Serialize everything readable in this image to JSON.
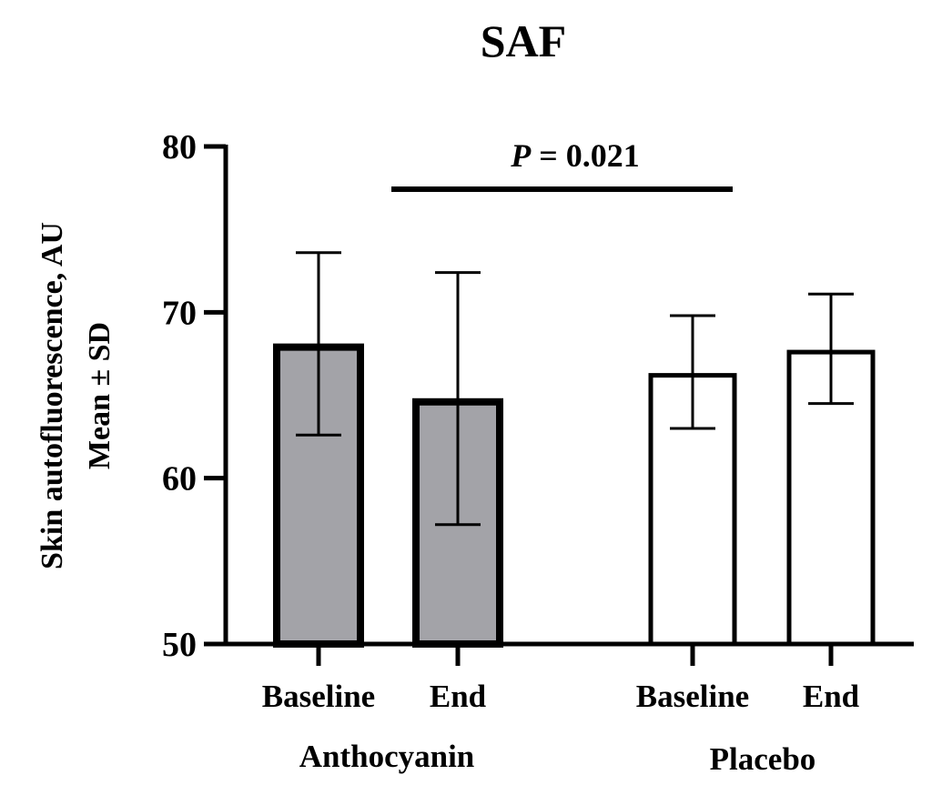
{
  "chart_data": {
    "type": "bar",
    "title": "SAF",
    "ylabel_line1": "Skin autofluorescence, AU",
    "ylabel_line2": "Mean ± SD",
    "xlabel": "",
    "ylim": [
      50,
      80
    ],
    "yticks": [
      "50",
      "60",
      "70",
      "80"
    ],
    "ytick_values": [
      50,
      60,
      70,
      80
    ],
    "categories": [
      "Baseline",
      "End",
      "Baseline",
      "End"
    ],
    "groups": [
      {
        "name": "Anthocyanin",
        "fill": "#a3a3a8"
      },
      {
        "name": "Placebo",
        "fill": "#ffffff"
      }
    ],
    "bars": [
      {
        "group": 0,
        "category": "Baseline",
        "mean": 67.9,
        "sd_upper": 73.6,
        "sd_lower": 62.6
      },
      {
        "group": 0,
        "category": "End",
        "mean": 64.6,
        "sd_upper": 72.4,
        "sd_lower": 57.2
      },
      {
        "group": 1,
        "category": "Baseline",
        "mean": 66.2,
        "sd_upper": 69.8,
        "sd_lower": 63.0
      },
      {
        "group": 1,
        "category": "End",
        "mean": 67.6,
        "sd_upper": 71.1,
        "sd_lower": 64.5
      }
    ],
    "annotation": {
      "p_label": "P",
      "p_value": "= 0.021",
      "between": "Anthocyanin End vs Placebo Baseline"
    },
    "grid": false,
    "legend": "none"
  }
}
